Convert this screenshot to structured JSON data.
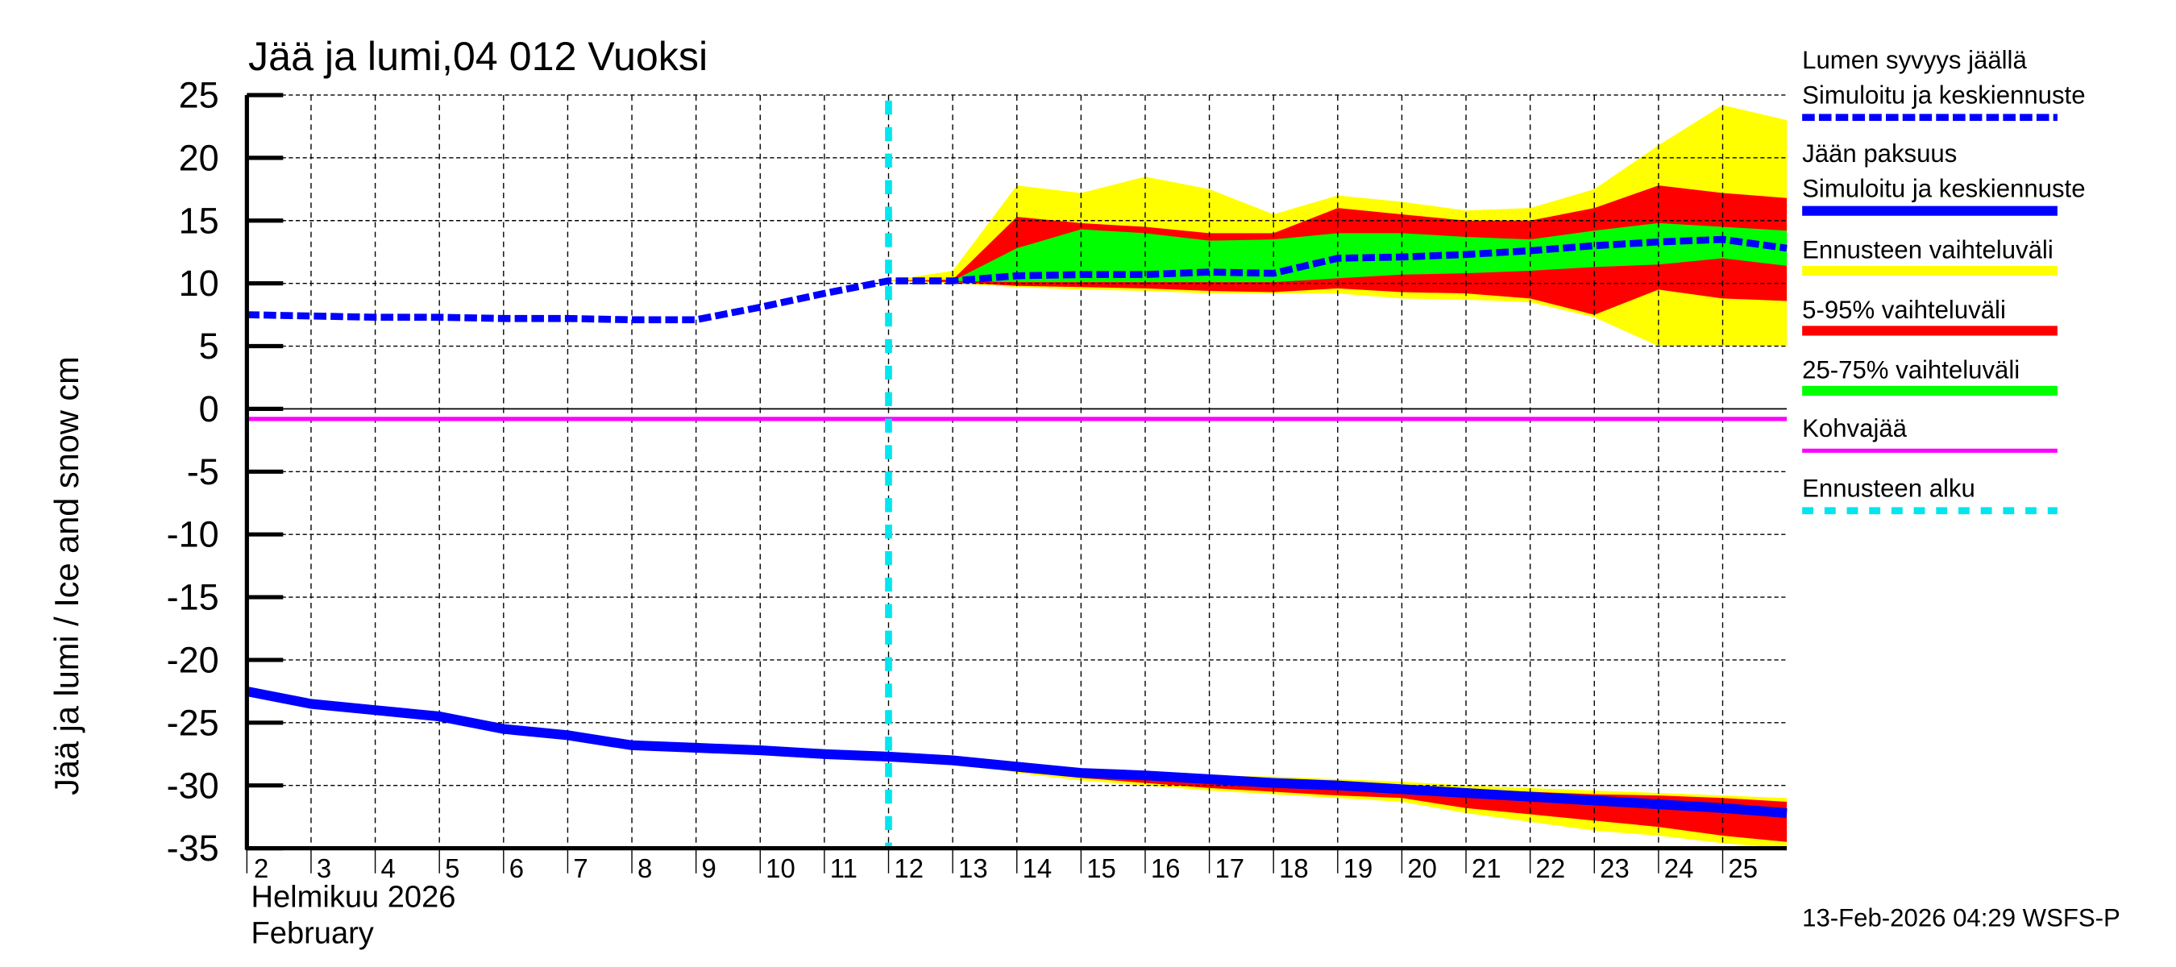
{
  "title": "Jää ja lumi,04 012 Vuoksi",
  "ylabel": "Jää ja lumi / Ice and snow    cm",
  "xlabel_fi": "Helmikuu  2026",
  "xlabel_en": "February",
  "footer": "13-Feb-2026 04:29 WSFS-P",
  "legend": {
    "snow_title": "Lumen syvyys jäällä",
    "snow_sub": "Simuloitu ja keskiennuste",
    "ice_title": "Jään paksuus",
    "ice_sub": "Simuloitu ja keskiennuste",
    "range": "Ennusteen vaihteluväli",
    "p5_95": "5-95% vaihteluväli",
    "p25_75": "25-75% vaihteluväli",
    "slush": "Kohvajää",
    "forecast_start": "Ennusteen alku"
  },
  "colors": {
    "snow": "#0000ff",
    "ice": "#0000ff",
    "range": "#ffff00",
    "p5_95": "#ff0000",
    "p25_75": "#00ff00",
    "slush": "#ff00ff",
    "forecast_start": "#00e5ee"
  },
  "chart_data": {
    "type": "line",
    "title": "Jää ja lumi,04 012 Vuoksi",
    "xlabel": "Helmikuu 2026 / February",
    "ylabel": "Jää ja lumi / Ice and snow cm",
    "ylim": [
      -35,
      25
    ],
    "yticks": [
      25,
      20,
      15,
      10,
      5,
      0,
      -5,
      -10,
      -15,
      -20,
      -25,
      -30,
      -35
    ],
    "xticks": [
      2,
      3,
      4,
      5,
      6,
      7,
      8,
      9,
      10,
      11,
      12,
      13,
      14,
      15,
      16,
      17,
      18,
      19,
      20,
      21,
      22,
      23,
      24,
      25
    ],
    "grid": true,
    "legend_position": "right",
    "forecast_start_day": 12,
    "slush_level": -0.8,
    "x": [
      2,
      3,
      4,
      5,
      6,
      7,
      8,
      9,
      10,
      11,
      12,
      13,
      14,
      15,
      16,
      17,
      18,
      19,
      20,
      21,
      22,
      23,
      24,
      25,
      26
    ],
    "series": [
      {
        "name": "Lumen syvyys jäällä (simuloitu ja keskiennuste)",
        "style": "dashed",
        "values": [
          7.5,
          7.4,
          7.3,
          7.3,
          7.2,
          7.2,
          7.1,
          7.1,
          8.1,
          9.2,
          10.2,
          10.2,
          10.6,
          10.7,
          10.7,
          10.9,
          10.8,
          12.0,
          12.1,
          12.3,
          12.6,
          13.0,
          13.3,
          13.5,
          12.8
        ]
      },
      {
        "name": "Jään paksuus (simuloitu ja keskiennuste)",
        "style": "solid",
        "values": [
          -22.5,
          -23.5,
          -24.0,
          -24.5,
          -25.5,
          -26.0,
          -26.8,
          -27.0,
          -27.2,
          -27.5,
          -27.7,
          -28.0,
          -28.5,
          -29.0,
          -29.2,
          -29.5,
          -29.8,
          -30.0,
          -30.3,
          -30.6,
          -30.9,
          -31.2,
          -31.5,
          -31.8,
          -32.2
        ]
      }
    ],
    "bands_x": [
      12,
      13,
      14,
      15,
      16,
      17,
      18,
      19,
      20,
      21,
      22,
      23,
      24,
      25,
      26
    ],
    "snow_bands": {
      "range_upper": [
        10.2,
        11.0,
        17.8,
        17.2,
        18.5,
        17.5,
        15.5,
        17.0,
        16.5,
        15.8,
        16.0,
        17.5,
        21.0,
        24.2,
        23.0
      ],
      "p95": [
        10.2,
        10.3,
        15.3,
        14.8,
        14.5,
        14.0,
        14.0,
        16.0,
        15.5,
        15.0,
        15.0,
        16.0,
        17.8,
        17.2,
        16.8
      ],
      "p75": [
        10.2,
        10.2,
        12.8,
        14.3,
        14.0,
        13.4,
        13.5,
        14.0,
        14.0,
        13.7,
        13.5,
        14.2,
        14.8,
        14.5,
        14.2
      ],
      "p25": [
        10.2,
        10.2,
        10.1,
        10.1,
        10.1,
        10.1,
        10.1,
        10.4,
        10.7,
        10.8,
        11.0,
        11.3,
        11.5,
        12.0,
        11.4
      ],
      "p5": [
        10.2,
        10.1,
        9.8,
        9.7,
        9.6,
        9.4,
        9.3,
        9.6,
        9.3,
        9.2,
        8.8,
        7.5,
        9.5,
        8.8,
        8.6
      ],
      "range_lower": [
        10.2,
        10.0,
        9.7,
        9.5,
        9.4,
        9.2,
        9.2,
        9.2,
        8.8,
        8.7,
        8.5,
        7.3,
        5.0,
        5.0,
        5.0
      ]
    },
    "ice_bands": {
      "range_upper": [
        -27.7,
        -28.0,
        -28.4,
        -28.7,
        -29.0,
        -29.2,
        -29.3,
        -29.5,
        -29.7,
        -30.0,
        -30.2,
        -30.4,
        -30.6,
        -30.8,
        -31.0
      ],
      "p95": [
        -27.7,
        -28.0,
        -28.5,
        -28.9,
        -29.2,
        -29.4,
        -29.6,
        -29.8,
        -30.0,
        -30.3,
        -30.5,
        -30.7,
        -30.8,
        -31.0,
        -31.3
      ],
      "p5": [
        -27.7,
        -28.1,
        -28.9,
        -29.4,
        -29.8,
        -30.2,
        -30.5,
        -30.8,
        -31.0,
        -31.8,
        -32.3,
        -32.8,
        -33.3,
        -34.0,
        -34.5
      ],
      "range_lower": [
        -27.7,
        -28.1,
        -29.0,
        -29.6,
        -30.0,
        -30.4,
        -30.7,
        -31.0,
        -31.3,
        -32.2,
        -32.9,
        -33.6,
        -34.0,
        -34.6,
        -35.0
      ]
    }
  }
}
